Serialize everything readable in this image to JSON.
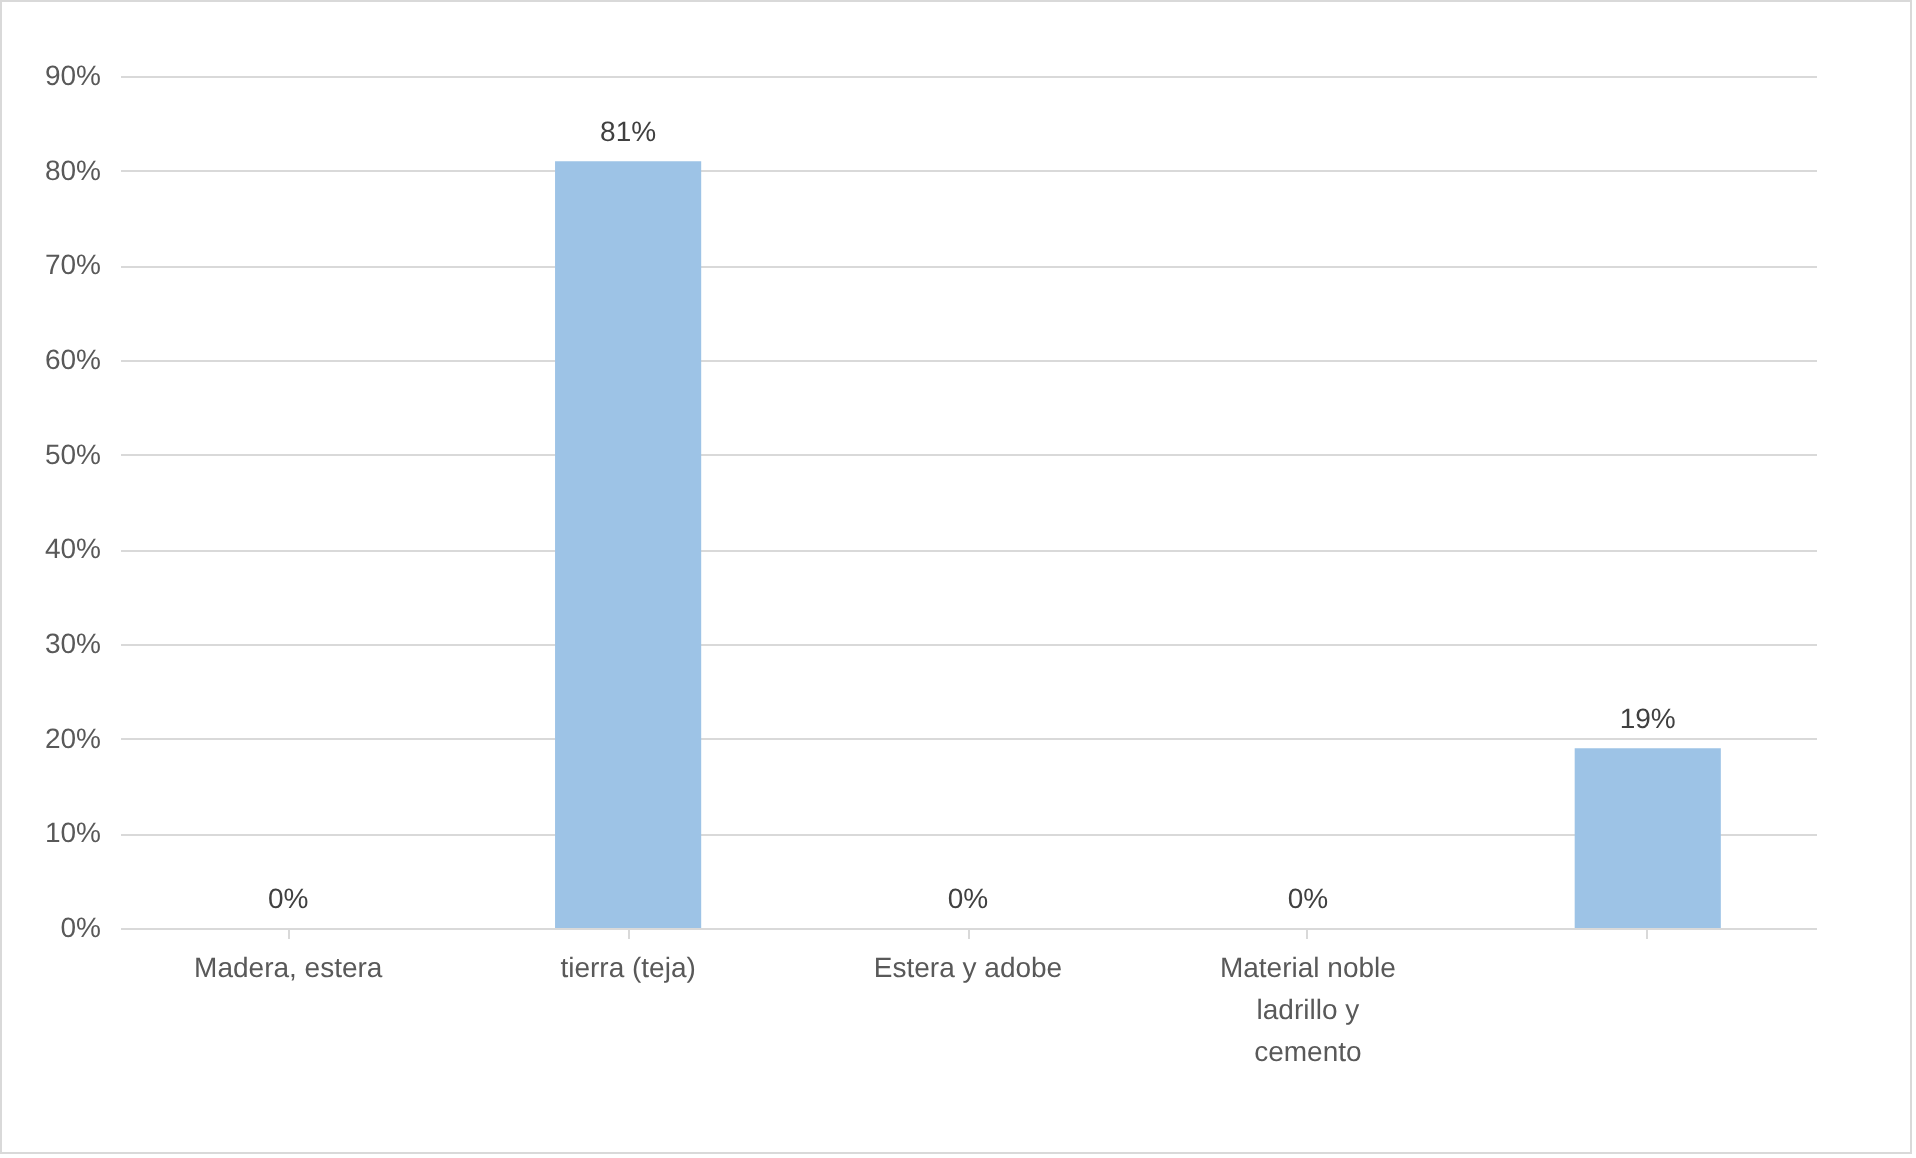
{
  "chart_data": {
    "type": "bar",
    "categories": [
      "Madera, estera",
      "tierra (teja)",
      "Estera y adobe",
      "Material noble ladrillo y cemento",
      null
    ],
    "values": [
      0,
      81,
      0,
      0,
      19
    ],
    "value_labels": [
      "0%",
      "81%",
      "0%",
      "0%",
      "19%"
    ],
    "color": "#9dc3e6",
    "ylim": [
      0,
      90
    ],
    "yticks": [
      {
        "value": 0,
        "label": "0%"
      },
      {
        "value": 10,
        "label": "10%"
      },
      {
        "value": 20,
        "label": "20%"
      },
      {
        "value": 30,
        "label": "30%"
      },
      {
        "value": 40,
        "label": "40%"
      },
      {
        "value": 50,
        "label": "50%"
      },
      {
        "value": 60,
        "label": "60%"
      },
      {
        "value": 70,
        "label": "70%"
      },
      {
        "value": 80,
        "label": "80%"
      },
      {
        "value": 90,
        "label": "90%"
      }
    ],
    "grid": "y"
  }
}
